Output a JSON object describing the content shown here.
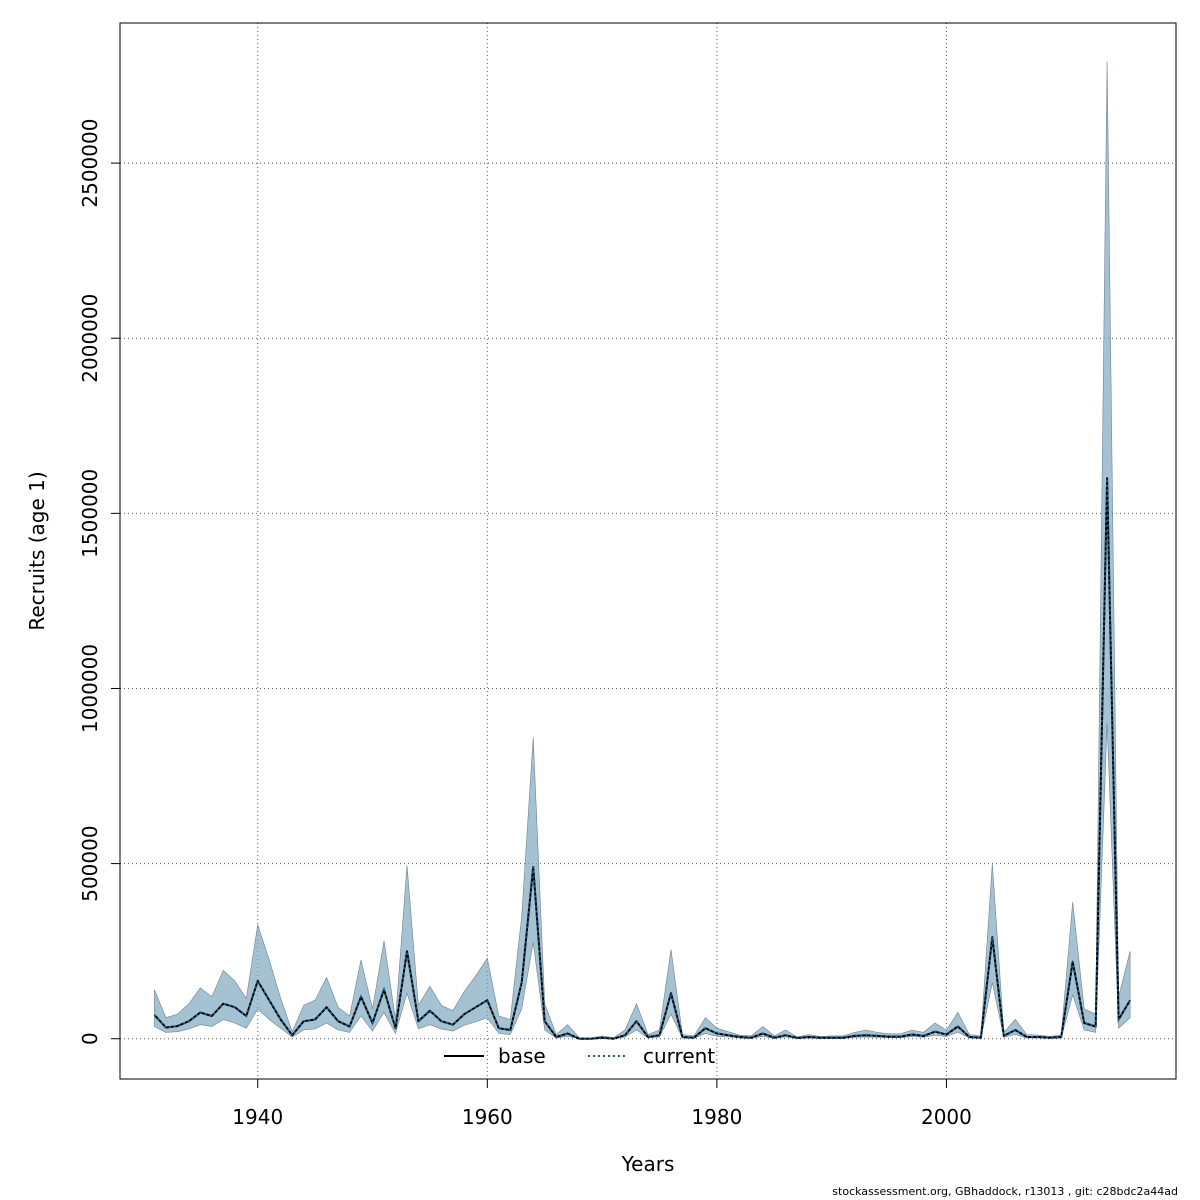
{
  "footer": "stockassessment.org, GBhaddock, r13013 , git: c28bdc2a44ad",
  "colors": {
    "band": "#7fa8c0",
    "band_edge": "#708090",
    "base": "#000000",
    "current": "#1f5e8c"
  },
  "chart_data": {
    "type": "area",
    "xlabel": "Years",
    "ylabel": "Recruits (age 1)",
    "xlim": [
      1928,
      2020
    ],
    "ylim": [
      -115000,
      2900000
    ],
    "xticks": [
      1940,
      1960,
      1980,
      2000
    ],
    "yticks": [
      0,
      500000,
      1000000,
      1500000,
      2000000,
      2500000
    ],
    "xtick_labels": [
      "1940",
      "1960",
      "1980",
      "2000"
    ],
    "ytick_labels": [
      "0",
      "500000",
      "1000000",
      "1500000",
      "2000000",
      "2500000"
    ],
    "grid": true,
    "legend_position": "bottom-center",
    "legend": [
      "base",
      "current"
    ],
    "x": [
      1931,
      1932,
      1933,
      1934,
      1935,
      1936,
      1937,
      1938,
      1939,
      1940,
      1941,
      1942,
      1943,
      1944,
      1945,
      1946,
      1947,
      1948,
      1949,
      1950,
      1951,
      1952,
      1953,
      1954,
      1955,
      1956,
      1957,
      1958,
      1959,
      1960,
      1961,
      1962,
      1963,
      1964,
      1965,
      1966,
      1967,
      1968,
      1969,
      1970,
      1971,
      1972,
      1973,
      1974,
      1975,
      1976,
      1977,
      1978,
      1979,
      1980,
      1981,
      1982,
      1983,
      1984,
      1985,
      1986,
      1987,
      1988,
      1989,
      1990,
      1991,
      1992,
      1993,
      1994,
      1995,
      1996,
      1997,
      1998,
      1999,
      2000,
      2001,
      2002,
      2003,
      2004,
      2005,
      2006,
      2007,
      2008,
      2009,
      2010,
      2011,
      2012,
      2013,
      2014,
      2015,
      2016
    ],
    "series": [
      {
        "name": "base",
        "line": "solid",
        "values": [
          68000,
          32000,
          36000,
          50000,
          75000,
          65000,
          100000,
          90000,
          65000,
          165000,
          110000,
          55000,
          10000,
          50000,
          55000,
          90000,
          50000,
          35000,
          120000,
          45000,
          140000,
          30000,
          250000,
          50000,
          80000,
          50000,
          40000,
          70000,
          90000,
          110000,
          30000,
          25000,
          160000,
          490000,
          50000,
          5000,
          15000,
          0,
          0,
          3000,
          0,
          10000,
          50000,
          5000,
          10000,
          130000,
          5000,
          3000,
          30000,
          15000,
          10000,
          5000,
          3000,
          15000,
          3000,
          10000,
          2000,
          5000,
          3000,
          3000,
          3000,
          8000,
          10000,
          8000,
          6000,
          6000,
          12000,
          8000,
          20000,
          12000,
          35000,
          5000,
          3000,
          290000,
          8000,
          25000,
          5000,
          5000,
          3000,
          5000,
          220000,
          45000,
          35000,
          1600000,
          55000,
          110000
        ]
      },
      {
        "name": "current",
        "line": "dotted",
        "values": [
          68000,
          32000,
          36000,
          50000,
          75000,
          65000,
          100000,
          90000,
          65000,
          165000,
          110000,
          55000,
          10000,
          50000,
          55000,
          90000,
          50000,
          35000,
          120000,
          45000,
          140000,
          30000,
          250000,
          50000,
          80000,
          50000,
          40000,
          70000,
          90000,
          110000,
          30000,
          25000,
          160000,
          490000,
          50000,
          5000,
          15000,
          0,
          0,
          3000,
          0,
          10000,
          50000,
          5000,
          10000,
          130000,
          5000,
          3000,
          30000,
          15000,
          10000,
          5000,
          3000,
          15000,
          3000,
          10000,
          2000,
          5000,
          3000,
          3000,
          3000,
          8000,
          10000,
          8000,
          6000,
          6000,
          12000,
          8000,
          20000,
          12000,
          35000,
          5000,
          3000,
          290000,
          8000,
          25000,
          5000,
          5000,
          3000,
          5000,
          220000,
          45000,
          35000,
          1600000,
          55000,
          110000
        ]
      }
    ],
    "band_upper": [
      140000,
      60000,
      70000,
      100000,
      145000,
      120000,
      195000,
      165000,
      115000,
      325000,
      225000,
      115000,
      20000,
      95000,
      110000,
      175000,
      90000,
      65000,
      225000,
      85000,
      280000,
      55000,
      495000,
      95000,
      150000,
      95000,
      80000,
      135000,
      180000,
      230000,
      65000,
      55000,
      350000,
      860000,
      100000,
      12000,
      40000,
      3000,
      2000,
      8000,
      3000,
      25000,
      100000,
      12000,
      25000,
      255000,
      12000,
      8000,
      60000,
      30000,
      20000,
      10000,
      8000,
      35000,
      8000,
      25000,
      5000,
      12000,
      6000,
      8000,
      8000,
      18000,
      25000,
      18000,
      14000,
      14000,
      25000,
      18000,
      45000,
      25000,
      75000,
      12000,
      8000,
      500000,
      18000,
      55000,
      12000,
      10000,
      7000,
      10000,
      390000,
      85000,
      70000,
      2790000,
      120000,
      250000
    ],
    "band_lower": [
      35000,
      18000,
      20000,
      28000,
      40000,
      35000,
      55000,
      45000,
      30000,
      85000,
      55000,
      30000,
      5000,
      25000,
      28000,
      45000,
      25000,
      18000,
      65000,
      22000,
      75000,
      15000,
      130000,
      28000,
      40000,
      28000,
      22000,
      38000,
      48000,
      60000,
      15000,
      12000,
      85000,
      275000,
      25000,
      2000,
      7000,
      0,
      0,
      1000,
      0,
      5000,
      25000,
      2000,
      5000,
      70000,
      2000,
      1000,
      15000,
      7000,
      5000,
      2000,
      1000,
      7000,
      1000,
      5000,
      1000,
      2000,
      1000,
      1000,
      1000,
      4000,
      5000,
      4000,
      3000,
      3000,
      6000,
      4000,
      10000,
      6000,
      18000,
      2000,
      1000,
      160000,
      4000,
      12000,
      2000,
      2000,
      1000,
      2000,
      125000,
      25000,
      18000,
      900000,
      30000,
      60000
    ]
  }
}
